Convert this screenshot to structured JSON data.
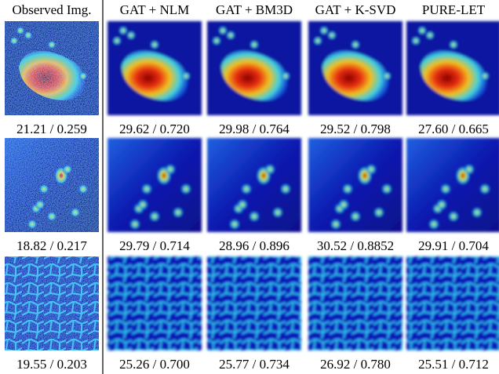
{
  "headers": [
    "Observed Img.",
    "GAT + NLM",
    "GAT + BM3D",
    "GAT + K-SVD",
    "PURE-LET"
  ],
  "rows": [
    {
      "captions": [
        "21.21 / 0.259",
        "29.62 / 0.720",
        "29.98 / 0.764",
        "29.52 / 0.798",
        "27.60 / 0.665"
      ]
    },
    {
      "captions": [
        "18.82 / 0.217",
        "29.79 / 0.714",
        "28.96 / 0.896",
        "30.52 / 0.8852",
        "29.91 / 0.704"
      ]
    },
    {
      "captions": [
        "19.55 / 0.203",
        "25.26 / 0.700",
        "25.77 / 0.734",
        "26.92 / 0.780",
        "25.51 / 0.712"
      ]
    }
  ]
}
